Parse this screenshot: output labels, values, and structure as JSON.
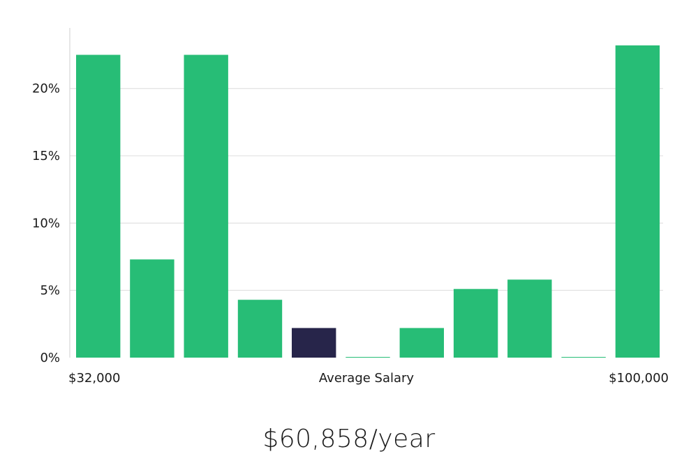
{
  "chart_data": {
    "type": "bar",
    "xlabel": "Average Salary",
    "x_min_label": "$32,000",
    "x_max_label": "$100,000",
    "ylim": [
      0,
      24.5
    ],
    "y_ticks": [
      0,
      5,
      10,
      15,
      20
    ],
    "y_tick_labels": [
      "0%",
      "5%",
      "10%",
      "15%",
      "20%"
    ],
    "grid": "horizontal",
    "values": [
      22.5,
      7.3,
      22.5,
      4.3,
      2.2,
      0.05,
      2.2,
      5.1,
      5.8,
      0.05,
      23.2
    ],
    "highlight_index": 4,
    "colors": {
      "bar": "#27bd76",
      "highlight": "#27254a",
      "grid": "#dcdcdc",
      "axis": "#cfcfcf"
    }
  },
  "summary": {
    "salary_text": "$60,858/year"
  }
}
